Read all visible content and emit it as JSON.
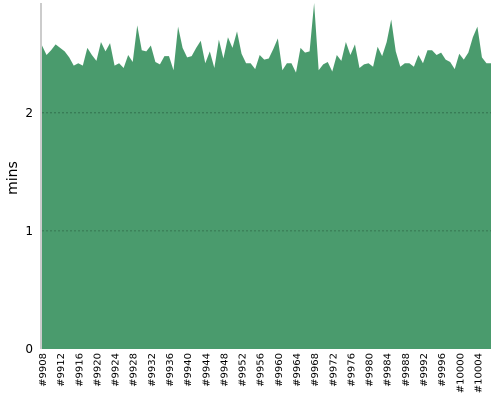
{
  "chart_data": {
    "type": "area",
    "y_label": "mins",
    "categories": [
      "#9908",
      null,
      null,
      null,
      "#9912",
      null,
      null,
      null,
      "#9916",
      null,
      null,
      null,
      "#9920",
      null,
      null,
      null,
      "#9924",
      null,
      null,
      null,
      "#9928",
      null,
      null,
      null,
      "#9932",
      null,
      null,
      null,
      "#9936",
      null,
      null,
      null,
      "#9940",
      null,
      null,
      null,
      "#9944",
      null,
      null,
      null,
      "#9948",
      null,
      null,
      null,
      "#9952",
      null,
      null,
      null,
      "#9956",
      null,
      null,
      null,
      "#9960",
      null,
      null,
      null,
      "#9964",
      null,
      null,
      null,
      "#9968",
      null,
      null,
      null,
      "#9972",
      null,
      null,
      null,
      "#9976",
      null,
      null,
      null,
      "#9980",
      null,
      null,
      null,
      "#9984",
      null,
      null,
      null,
      "#9988",
      null,
      null,
      null,
      "#9992",
      null,
      null,
      null,
      "#9996",
      null,
      null,
      null,
      "#10000",
      null,
      null,
      null,
      "#10004",
      null,
      null,
      null
    ],
    "values": [
      2.57,
      2.49,
      2.53,
      2.58,
      2.55,
      2.52,
      2.47,
      2.4,
      2.42,
      2.4,
      2.55,
      2.49,
      2.44,
      2.6,
      2.52,
      2.59,
      2.4,
      2.42,
      2.38,
      2.49,
      2.43,
      2.74,
      2.53,
      2.52,
      2.57,
      2.43,
      2.41,
      2.48,
      2.48,
      2.36,
      2.73,
      2.55,
      2.47,
      2.48,
      2.55,
      2.61,
      2.42,
      2.52,
      2.38,
      2.62,
      2.46,
      2.64,
      2.55,
      2.69,
      2.5,
      2.42,
      2.42,
      2.37,
      2.49,
      2.45,
      2.46,
      2.54,
      2.63,
      2.36,
      2.42,
      2.42,
      2.34,
      2.55,
      2.51,
      2.52,
      2.93,
      2.36,
      2.41,
      2.43,
      2.35,
      2.49,
      2.44,
      2.6,
      2.49,
      2.58,
      2.38,
      2.41,
      2.42,
      2.39,
      2.56,
      2.48,
      2.6,
      2.79,
      2.52,
      2.39,
      2.42,
      2.42,
      2.39,
      2.49,
      2.42,
      2.53,
      2.53,
      2.49,
      2.51,
      2.45,
      2.43,
      2.37,
      2.5,
      2.45,
      2.51,
      2.64,
      2.73,
      2.47,
      2.42,
      2.42
    ],
    "color": "#4a9b6d",
    "ylim": [
      0,
      2.93
    ],
    "yticks": [
      0,
      1,
      2
    ],
    "grid": true
  }
}
